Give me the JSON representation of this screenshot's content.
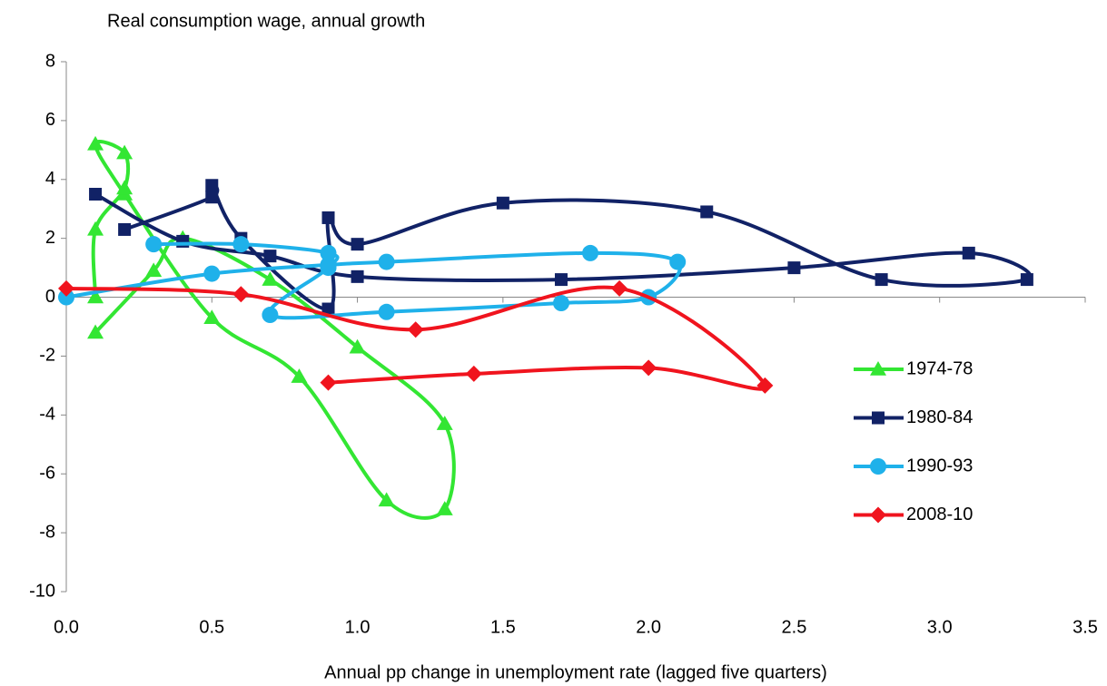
{
  "chart_data": {
    "type": "line",
    "y_label": "Real consumption wage, annual growth",
    "x_label": "Annual pp change in unemployment rate (lagged five quarters)",
    "xlim": [
      0,
      3.5
    ],
    "xticks": [
      {
        "value": 0,
        "label": "0.0"
      },
      0.5,
      {
        "value": 1,
        "label": "1.0"
      },
      1.5,
      {
        "value": 2,
        "label": "2.0"
      },
      2.5,
      {
        "value": 3,
        "label": "3.0"
      },
      3.5
    ],
    "ylim": [
      -10,
      8
    ],
    "yticks": [
      -10,
      -8,
      -6,
      -4,
      -2,
      0,
      2,
      4,
      6,
      8
    ],
    "legend": "right",
    "series": [
      {
        "name": "1974-78",
        "color": "#33e633",
        "marker": "triangle",
        "x": [
          0.1,
          0.3,
          0.4,
          0.7,
          1.0,
          1.3,
          1.3,
          1.1,
          0.8,
          0.5,
          0.2,
          0.1,
          0.2,
          0.2,
          0.1,
          0.1
        ],
        "values": [
          -1.2,
          0.9,
          2.0,
          0.6,
          -1.7,
          -4.3,
          -7.2,
          -6.9,
          -2.7,
          -0.7,
          3.5,
          5.2,
          4.9,
          3.7,
          2.3,
          0.0
        ]
      },
      {
        "name": "1980-84",
        "color": "#112266",
        "marker": "square",
        "x": [
          0.2,
          0.5,
          0.5,
          0.6,
          0.9,
          0.9,
          1.0,
          1.5,
          2.2,
          2.8,
          3.3,
          3.1,
          2.5,
          1.7,
          1.0,
          0.7,
          0.4,
          0.1
        ],
        "values": [
          2.3,
          3.4,
          3.8,
          2.0,
          -0.4,
          2.7,
          1.8,
          3.2,
          2.9,
          0.6,
          0.6,
          1.5,
          1.0,
          0.6,
          0.7,
          1.4,
          1.9,
          3.5
        ]
      },
      {
        "name": "1990-93",
        "color": "#1fb1ea",
        "marker": "circle",
        "x": [
          0.0,
          0.5,
          0.9,
          1.1,
          1.8,
          2.1,
          2.0,
          1.7,
          1.1,
          0.7,
          0.9,
          0.9,
          0.6,
          0.3
        ],
        "values": [
          0.0,
          0.8,
          1.1,
          1.2,
          1.5,
          1.2,
          0.0,
          -0.2,
          -0.5,
          -0.6,
          1.0,
          1.5,
          1.8,
          1.8
        ]
      },
      {
        "name": "2008-10",
        "color": "#f0141e",
        "marker": "diamond",
        "x": [
          0.0,
          0.6,
          1.2,
          1.9,
          2.4,
          2.0,
          1.4,
          0.9
        ],
        "values": [
          0.3,
          0.1,
          -1.1,
          0.3,
          -3.0,
          -2.4,
          -2.6,
          -2.9
        ]
      }
    ]
  }
}
